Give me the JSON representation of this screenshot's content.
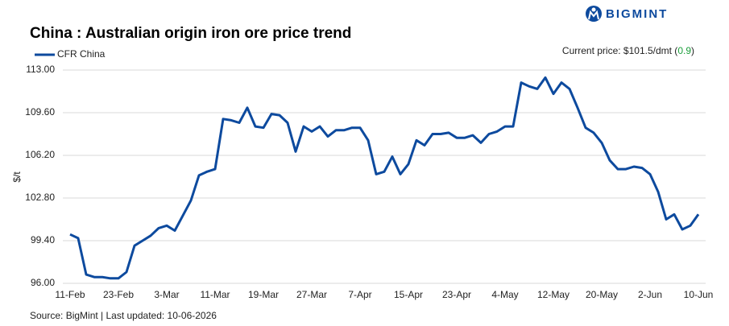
{
  "chart_data": {
    "type": "line",
    "title": "China : Australian origin iron ore price trend",
    "brand": "BIGMINT",
    "current_price": {
      "text": "Current price: $101.5/dmt (",
      "change": "0.9",
      "close": ")"
    },
    "ylabel": "$/t",
    "source": "Source: BigMint | Last updated: 10-06-2026",
    "categories": [
      "11-Feb",
      null,
      null,
      null,
      null,
      null,
      "23-Feb",
      null,
      null,
      null,
      null,
      null,
      "3-Mar",
      null,
      null,
      null,
      null,
      null,
      "11-Mar",
      null,
      null,
      null,
      null,
      null,
      "19-Mar",
      null,
      null,
      null,
      null,
      null,
      "27-Mar",
      null,
      null,
      null,
      null,
      null,
      "7-Apr",
      null,
      null,
      null,
      null,
      null,
      "15-Apr",
      null,
      null,
      null,
      null,
      null,
      "23-Apr",
      null,
      null,
      null,
      null,
      null,
      "4-May",
      null,
      null,
      null,
      null,
      null,
      "12-May",
      null,
      null,
      null,
      null,
      null,
      "20-May",
      null,
      null,
      null,
      null,
      null,
      "2-Jun",
      null,
      null,
      null,
      null,
      null,
      "10-Jun"
    ],
    "series": [
      {
        "name": "CFR China",
        "color": "#0d4a9e",
        "values": [
          99.9,
          99.6,
          96.7,
          96.5,
          96.5,
          96.4,
          96.4,
          96.9,
          99.0,
          99.4,
          99.8,
          100.4,
          100.6,
          100.2,
          101.4,
          102.6,
          104.6,
          104.9,
          105.1,
          109.1,
          109.0,
          108.8,
          110.0,
          108.5,
          108.4,
          109.5,
          109.4,
          108.8,
          106.5,
          108.5,
          108.1,
          108.5,
          107.7,
          108.2,
          108.2,
          108.4,
          108.4,
          107.4,
          104.7,
          104.9,
          106.1,
          104.7,
          105.5,
          107.4,
          107.0,
          107.9,
          107.9,
          108.0,
          107.6,
          107.6,
          107.8,
          107.2,
          107.9,
          108.1,
          108.5,
          108.5,
          112.0,
          111.7,
          111.5,
          112.4,
          111.1,
          112.0,
          111.5,
          110.0,
          108.4,
          108.0,
          107.2,
          105.8,
          105.1,
          105.1,
          105.3,
          105.2,
          104.7,
          103.3,
          101.1,
          101.5,
          100.3,
          100.6,
          101.5
        ]
      }
    ],
    "ylim": [
      96,
      113
    ],
    "yticks": [
      {
        "value": 96,
        "label": "96.00"
      },
      {
        "value": 99.4,
        "label": "99.40"
      },
      {
        "value": 102.8,
        "label": "102.80"
      },
      {
        "value": 106.2,
        "label": "106.20"
      },
      {
        "value": 109.6,
        "label": "109.60"
      },
      {
        "value": 113,
        "label": "113.00"
      }
    ],
    "grid": true,
    "change_color": "#1a9e3a"
  }
}
